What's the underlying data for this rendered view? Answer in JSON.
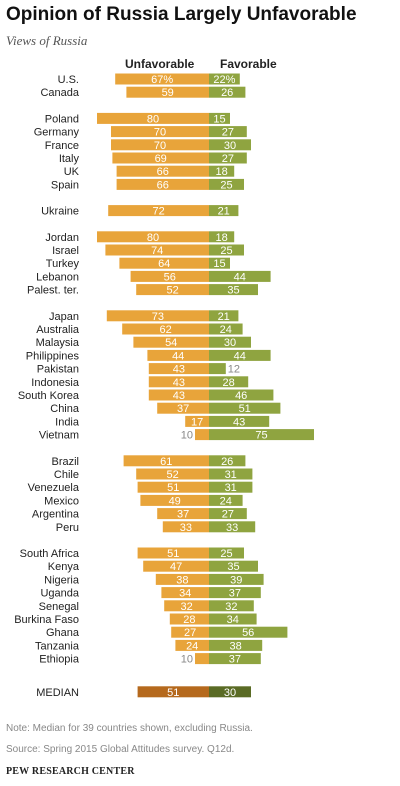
{
  "header": {
    "title": "Opinion of Russia Largely Unfavorable",
    "subtitle": "Views of Russia",
    "unfavorable_label": "Unfavorable",
    "favorable_label": "Favorable"
  },
  "colors": {
    "unfavorable": "#e8a43a",
    "favorable": "#8fa440",
    "median_unfavorable": "#b5691d",
    "median_favorable": "#5a6b25",
    "bar_text": "#ffffff",
    "outside_text": "#888888",
    "label_text": "#222222"
  },
  "chart_data": {
    "type": "bar",
    "orientation": "horizontal-diverging",
    "title": "Opinion of Russia Largely Unfavorable",
    "subtitle": "Views of Russia",
    "series": [
      {
        "name": "Unfavorable",
        "direction": "left"
      },
      {
        "name": "Favorable",
        "direction": "right"
      }
    ],
    "groups": [
      {
        "rows": [
          {
            "label": "U.S.",
            "unfavorable": 67,
            "favorable": 22,
            "unf_text": "67%",
            "fav_text": "22%"
          },
          {
            "label": "Canada",
            "unfavorable": 59,
            "favorable": 26
          }
        ]
      },
      {
        "rows": [
          {
            "label": "Poland",
            "unfavorable": 80,
            "favorable": 15
          },
          {
            "label": "Germany",
            "unfavorable": 70,
            "favorable": 27
          },
          {
            "label": "France",
            "unfavorable": 70,
            "favorable": 30
          },
          {
            "label": "Italy",
            "unfavorable": 69,
            "favorable": 27
          },
          {
            "label": "UK",
            "unfavorable": 66,
            "favorable": 18
          },
          {
            "label": "Spain",
            "unfavorable": 66,
            "favorable": 25
          }
        ]
      },
      {
        "rows": [
          {
            "label": "Ukraine",
            "unfavorable": 72,
            "favorable": 21
          }
        ]
      },
      {
        "rows": [
          {
            "label": "Jordan",
            "unfavorable": 80,
            "favorable": 18
          },
          {
            "label": "Israel",
            "unfavorable": 74,
            "favorable": 25
          },
          {
            "label": "Turkey",
            "unfavorable": 64,
            "favorable": 15
          },
          {
            "label": "Lebanon",
            "unfavorable": 56,
            "favorable": 44
          },
          {
            "label": "Palest. ter.",
            "unfavorable": 52,
            "favorable": 35
          }
        ]
      },
      {
        "rows": [
          {
            "label": "Japan",
            "unfavorable": 73,
            "favorable": 21
          },
          {
            "label": "Australia",
            "unfavorable": 62,
            "favorable": 24
          },
          {
            "label": "Malaysia",
            "unfavorable": 54,
            "favorable": 30
          },
          {
            "label": "Philippines",
            "unfavorable": 44,
            "favorable": 44
          },
          {
            "label": "Pakistan",
            "unfavorable": 43,
            "favorable": 12
          },
          {
            "label": "Indonesia",
            "unfavorable": 43,
            "favorable": 28
          },
          {
            "label": "South Korea",
            "unfavorable": 43,
            "favorable": 46
          },
          {
            "label": "China",
            "unfavorable": 37,
            "favorable": 51
          },
          {
            "label": "India",
            "unfavorable": 17,
            "favorable": 43
          },
          {
            "label": "Vietnam",
            "unfavorable": 10,
            "favorable": 75
          }
        ]
      },
      {
        "rows": [
          {
            "label": "Brazil",
            "unfavorable": 61,
            "favorable": 26
          },
          {
            "label": "Chile",
            "unfavorable": 52,
            "favorable": 31
          },
          {
            "label": "Venezuela",
            "unfavorable": 51,
            "favorable": 31
          },
          {
            "label": "Mexico",
            "unfavorable": 49,
            "favorable": 24
          },
          {
            "label": "Argentina",
            "unfavorable": 37,
            "favorable": 27
          },
          {
            "label": "Peru",
            "unfavorable": 33,
            "favorable": 33
          }
        ]
      },
      {
        "rows": [
          {
            "label": "South Africa",
            "unfavorable": 51,
            "favorable": 25
          },
          {
            "label": "Kenya",
            "unfavorable": 47,
            "favorable": 35
          },
          {
            "label": "Nigeria",
            "unfavorable": 38,
            "favorable": 39
          },
          {
            "label": "Uganda",
            "unfavorable": 34,
            "favorable": 37
          },
          {
            "label": "Senegal",
            "unfavorable": 32,
            "favorable": 32
          },
          {
            "label": "Burkina Faso",
            "unfavorable": 28,
            "favorable": 34
          },
          {
            "label": "Ghana",
            "unfavorable": 27,
            "favorable": 56
          },
          {
            "label": "Tanzania",
            "unfavorable": 24,
            "favorable": 38
          },
          {
            "label": "Ethiopia",
            "unfavorable": 10,
            "favorable": 37
          }
        ]
      },
      {
        "median": true,
        "rows": [
          {
            "label": "MEDIAN",
            "unfavorable": 51,
            "favorable": 30
          }
        ]
      }
    ]
  },
  "footer": {
    "note": "Note: Median for 39 countries shown, excluding Russia.",
    "source": "Source: Spring 2015 Global Attitudes survey. Q12d.",
    "brand": "PEW RESEARCH CENTER"
  }
}
